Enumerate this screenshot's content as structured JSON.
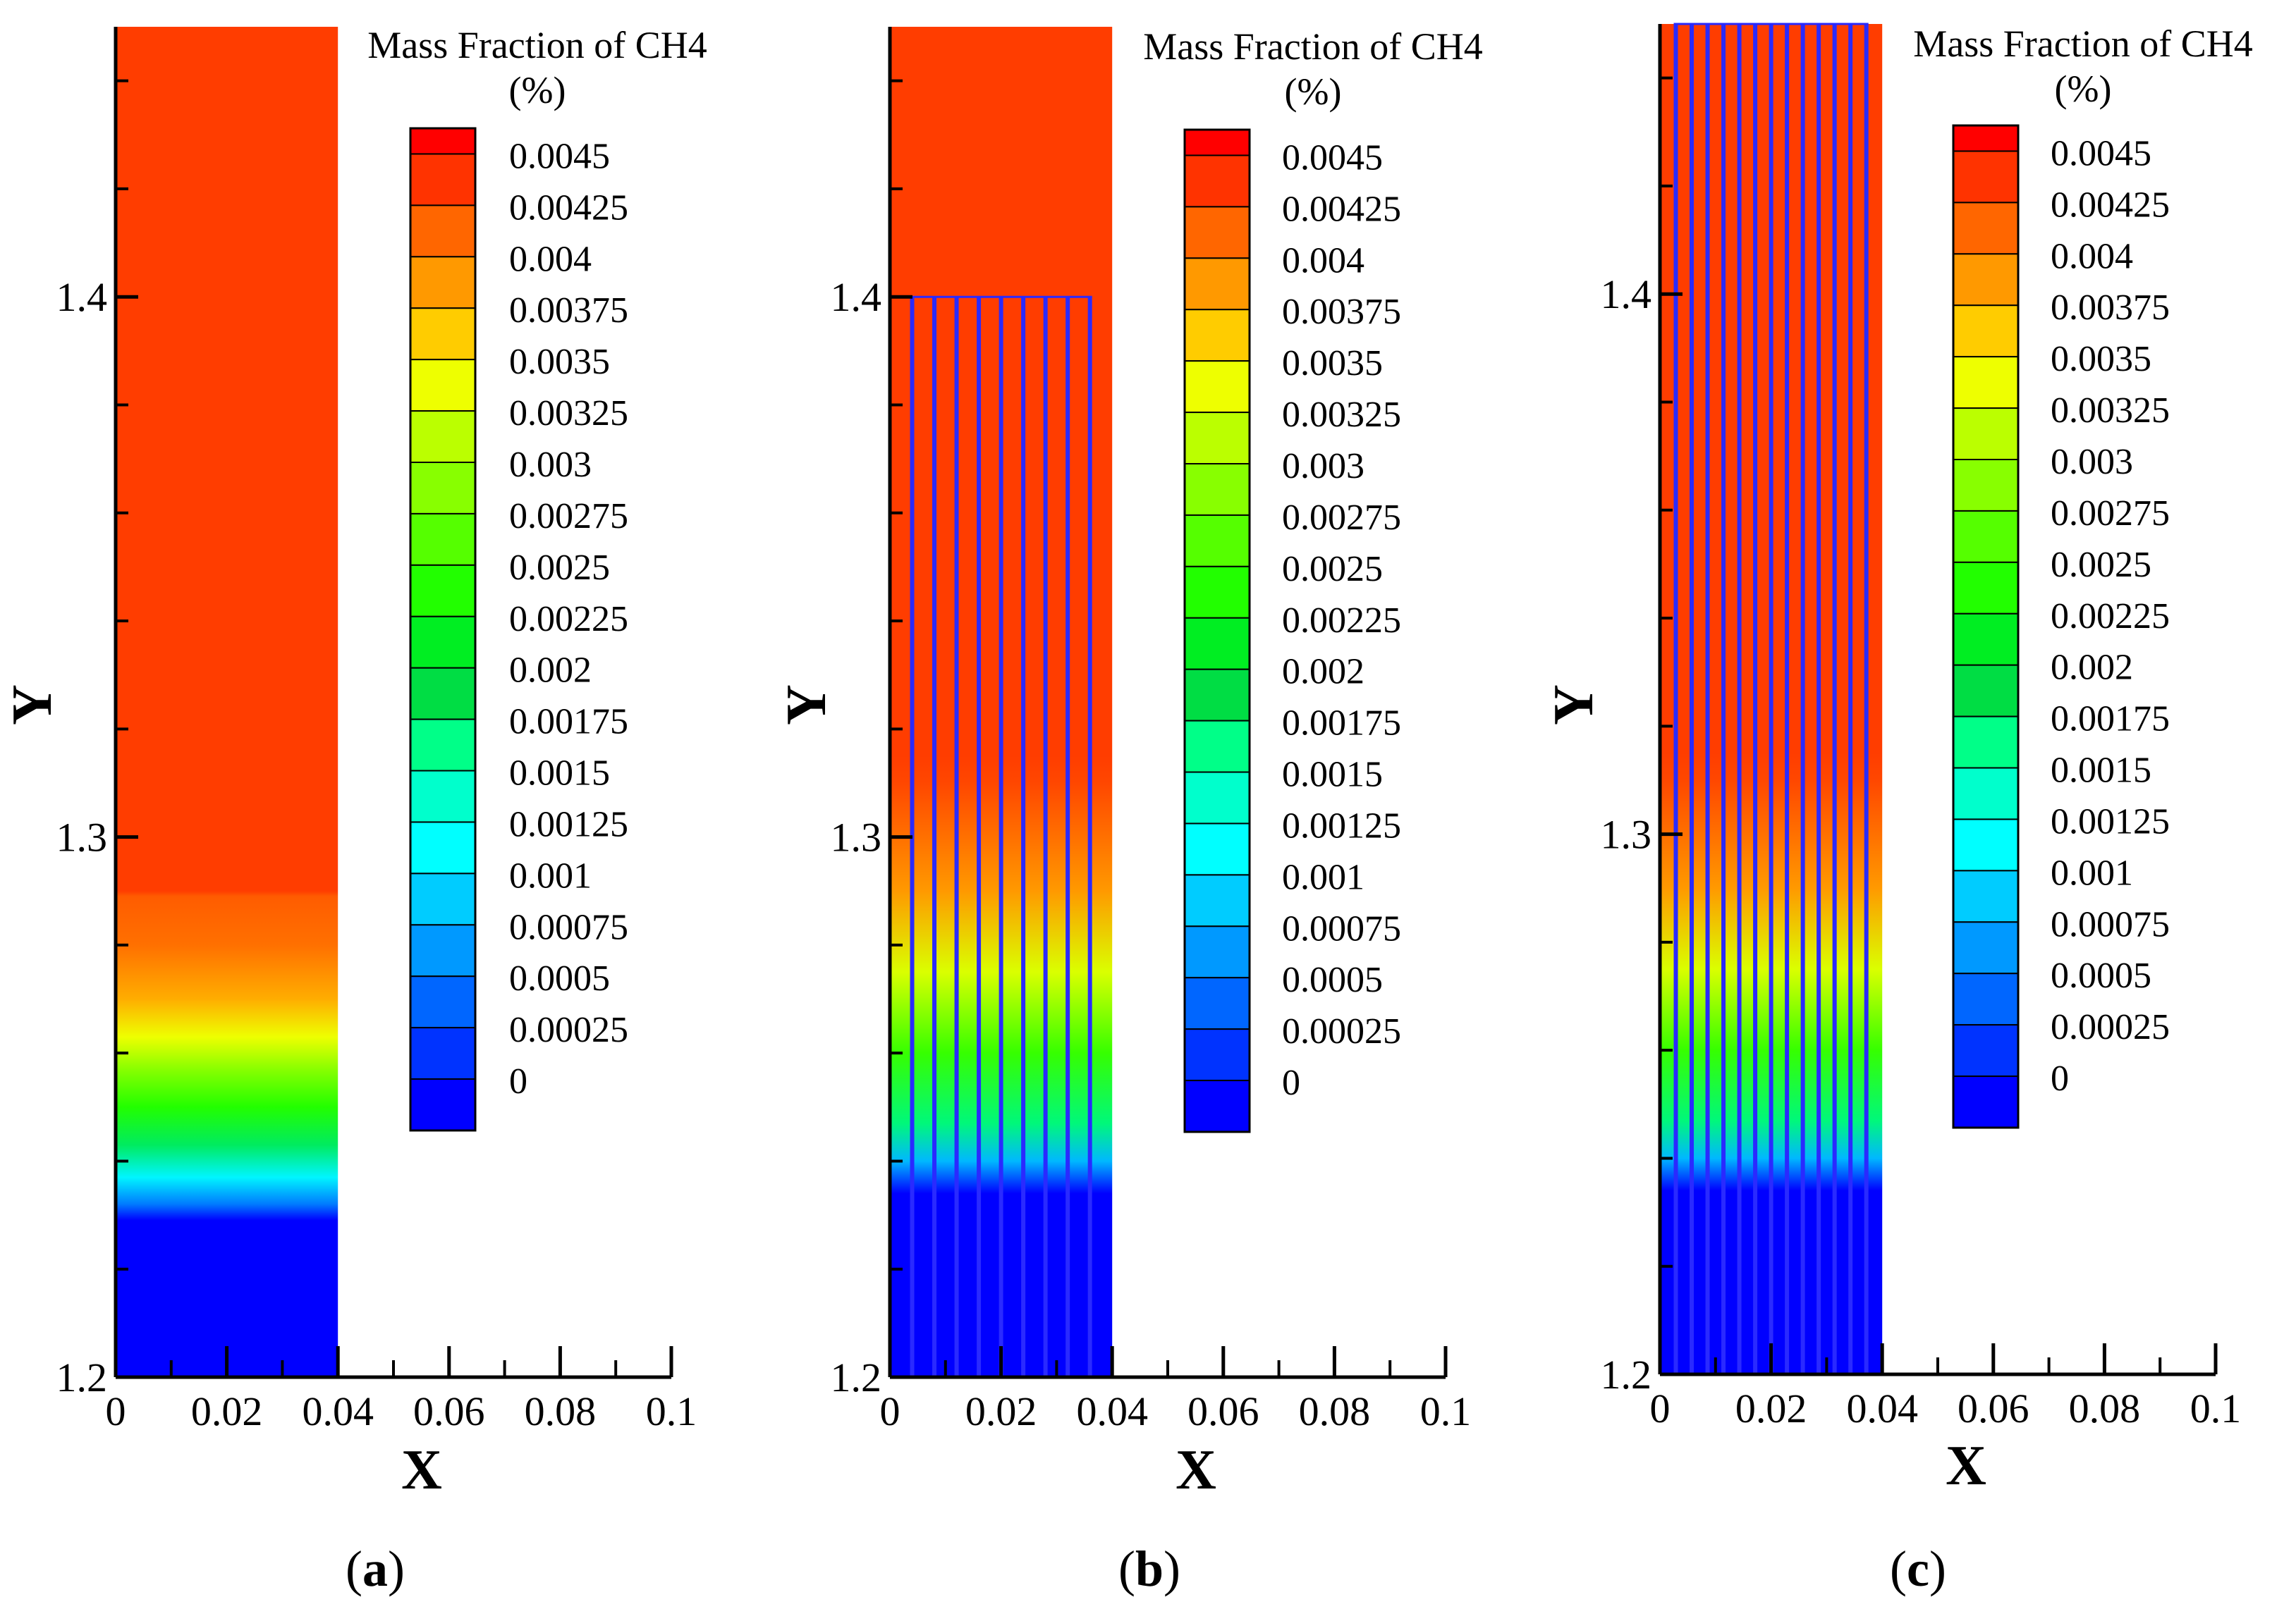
{
  "figure": {
    "panels": [
      {
        "label_open": "(",
        "label_letter": "a",
        "label_close": ")"
      },
      {
        "label_open": "(",
        "label_letter": "b",
        "label_close": ")"
      },
      {
        "label_open": "(",
        "label_letter": "c",
        "label_close": ")"
      }
    ]
  },
  "chart_data": [
    {
      "type": "heatmap",
      "panel": "a",
      "title": "Mass Fraction of CH4",
      "title_unit": "(%)",
      "xlabel": "X",
      "ylabel": "Y",
      "xlim": [
        0,
        0.1
      ],
      "ylim": [
        1.2,
        1.45
      ],
      "x_ticks": [
        "0",
        "0.02",
        "0.04",
        "0.06",
        "0.08",
        "0.1"
      ],
      "y_ticks": [
        "1.2",
        "1.3",
        "1.4"
      ],
      "domain_x": [
        0,
        0.04
      ],
      "plate_count": 0,
      "plate_top_y": null,
      "profile": [
        {
          "y": 1.2,
          "value": 0
        },
        {
          "y": 1.229,
          "value": 0
        },
        {
          "y": 1.232,
          "value": 0.0006
        },
        {
          "y": 1.237,
          "value": 0.0012
        },
        {
          "y": 1.243,
          "value": 0.0019
        },
        {
          "y": 1.25,
          "value": 0.0025
        },
        {
          "y": 1.257,
          "value": 0.003
        },
        {
          "y": 1.263,
          "value": 0.0035
        },
        {
          "y": 1.27,
          "value": 0.0039
        },
        {
          "y": 1.28,
          "value": 0.0042
        },
        {
          "y": 1.289,
          "value": 0.0043
        },
        {
          "y": 1.29,
          "value": 0.00445
        },
        {
          "y": 1.45,
          "value": 0.00445
        }
      ],
      "legend": {
        "levels": [
          "0.0045",
          "0.00425",
          "0.004",
          "0.00375",
          "0.0035",
          "0.00325",
          "0.003",
          "0.00275",
          "0.0025",
          "0.00225",
          "0.002",
          "0.00175",
          "0.0015",
          "0.00125",
          "0.001",
          "0.00075",
          "0.0005",
          "0.00025",
          "0"
        ],
        "colors": [
          "#ff0000",
          "#ff3300",
          "#ff6600",
          "#ff9900",
          "#ffcc00",
          "#eeff00",
          "#bbff00",
          "#88ff00",
          "#55ff00",
          "#22ff00",
          "#00ee22",
          "#00dd44",
          "#00ff88",
          "#00ffcc",
          "#00ffff",
          "#00ccff",
          "#0099ff",
          "#0066ff",
          "#0033ff",
          "#0000ff"
        ]
      }
    },
    {
      "type": "heatmap",
      "panel": "b",
      "title": "Mass Fraction of CH4",
      "title_unit": "(%)",
      "xlabel": "X",
      "ylabel": "Y",
      "xlim": [
        0,
        0.1
      ],
      "ylim": [
        1.2,
        1.45
      ],
      "x_ticks": [
        "0",
        "0.02",
        "0.04",
        "0.06",
        "0.08",
        "0.1"
      ],
      "y_ticks": [
        "1.2",
        "1.3",
        "1.4"
      ],
      "domain_x": [
        0,
        0.04
      ],
      "plate_count": 9,
      "plate_top_y": 1.4,
      "profile": [
        {
          "y": 1.2,
          "value": 0
        },
        {
          "y": 1.234,
          "value": 0
        },
        {
          "y": 1.24,
          "value": 0.0009
        },
        {
          "y": 1.247,
          "value": 0.0018
        },
        {
          "y": 1.26,
          "value": 0.0026
        },
        {
          "y": 1.275,
          "value": 0.0034
        },
        {
          "y": 1.29,
          "value": 0.004
        },
        {
          "y": 1.3,
          "value": 0.0042
        },
        {
          "y": 1.31,
          "value": 0.0044
        },
        {
          "y": 1.315,
          "value": 0.00445
        },
        {
          "y": 1.45,
          "value": 0.00445
        }
      ],
      "legend": {
        "levels": [
          "0.0045",
          "0.00425",
          "0.004",
          "0.00375",
          "0.0035",
          "0.00325",
          "0.003",
          "0.00275",
          "0.0025",
          "0.00225",
          "0.002",
          "0.00175",
          "0.0015",
          "0.00125",
          "0.001",
          "0.00075",
          "0.0005",
          "0.00025",
          "0"
        ],
        "colors": [
          "#ff0000",
          "#ff3300",
          "#ff6600",
          "#ff9900",
          "#ffcc00",
          "#eeff00",
          "#bbff00",
          "#88ff00",
          "#55ff00",
          "#22ff00",
          "#00ee22",
          "#00dd44",
          "#00ff88",
          "#00ffcc",
          "#00ffff",
          "#00ccff",
          "#0099ff",
          "#0066ff",
          "#0033ff",
          "#0000ff"
        ]
      }
    },
    {
      "type": "heatmap",
      "panel": "c",
      "title": "Mass Fraction of CH4",
      "title_unit": "(%)",
      "xlabel": "X",
      "ylabel": "Y",
      "xlim": [
        0,
        0.1
      ],
      "ylim": [
        1.2,
        1.45
      ],
      "x_ticks": [
        "0",
        "0.02",
        "0.04",
        "0.06",
        "0.08",
        "0.1"
      ],
      "y_ticks": [
        "1.2",
        "1.3",
        "1.4"
      ],
      "domain_x": [
        0,
        0.04
      ],
      "plate_count": 13,
      "plate_top_y": 1.45,
      "profile": [
        {
          "y": 1.2,
          "value": 0
        },
        {
          "y": 1.234,
          "value": 0
        },
        {
          "y": 1.24,
          "value": 0.0009
        },
        {
          "y": 1.247,
          "value": 0.0018
        },
        {
          "y": 1.26,
          "value": 0.0026
        },
        {
          "y": 1.275,
          "value": 0.0034
        },
        {
          "y": 1.29,
          "value": 0.004
        },
        {
          "y": 1.3,
          "value": 0.0042
        },
        {
          "y": 1.31,
          "value": 0.0044
        },
        {
          "y": 1.315,
          "value": 0.00445
        },
        {
          "y": 1.45,
          "value": 0.00445
        }
      ],
      "legend": {
        "levels": [
          "0.0045",
          "0.00425",
          "0.004",
          "0.00375",
          "0.0035",
          "0.00325",
          "0.003",
          "0.00275",
          "0.0025",
          "0.00225",
          "0.002",
          "0.00175",
          "0.0015",
          "0.00125",
          "0.001",
          "0.00075",
          "0.0005",
          "0.00025",
          "0"
        ],
        "colors": [
          "#ff0000",
          "#ff3300",
          "#ff6600",
          "#ff9900",
          "#ffcc00",
          "#eeff00",
          "#bbff00",
          "#88ff00",
          "#55ff00",
          "#22ff00",
          "#00ee22",
          "#00dd44",
          "#00ff88",
          "#00ffcc",
          "#00ffff",
          "#00ccff",
          "#0099ff",
          "#0066ff",
          "#0033ff",
          "#0000ff"
        ]
      }
    }
  ]
}
